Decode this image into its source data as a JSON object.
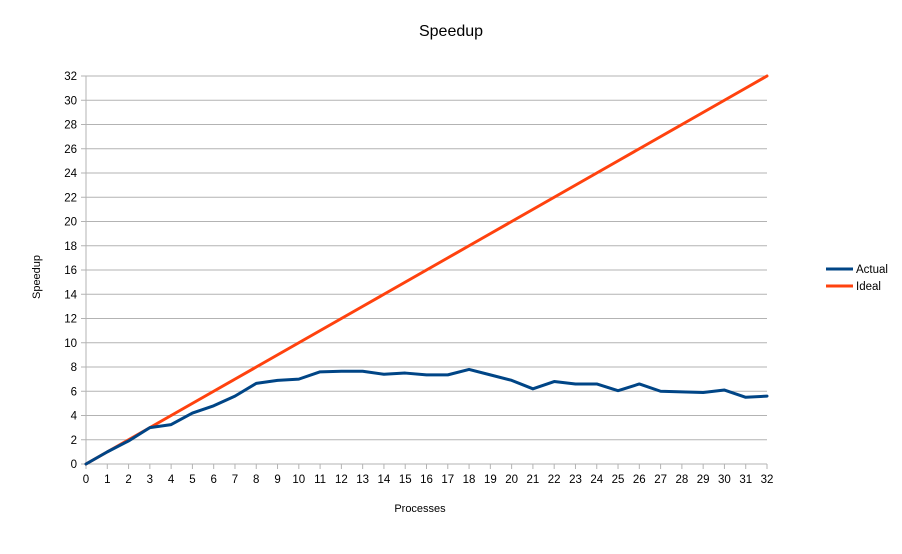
{
  "chart_data": {
    "type": "line",
    "title": "Speedup",
    "xlabel": "Processes",
    "ylabel": "Speedup",
    "xlim": [
      0,
      32
    ],
    "ylim": [
      0,
      32
    ],
    "x_ticks": [
      "0",
      "1",
      "2",
      "3",
      "4",
      "5",
      "6",
      "7",
      "8",
      "9",
      "10",
      "11",
      "12",
      "13",
      "14",
      "15",
      "16",
      "17",
      "18",
      "19",
      "20",
      "21",
      "22",
      "23",
      "24",
      "25",
      "26",
      "27",
      "28",
      "29",
      "30",
      "31",
      "32"
    ],
    "y_ticks": [
      "0",
      "2",
      "4",
      "6",
      "8",
      "10",
      "12",
      "14",
      "16",
      "18",
      "20",
      "22",
      "24",
      "26",
      "28",
      "30",
      "32"
    ],
    "grid": "horizontal",
    "legend_position": "right",
    "x": [
      0,
      1,
      2,
      3,
      4,
      5,
      6,
      7,
      8,
      9,
      10,
      11,
      12,
      13,
      14,
      15,
      16,
      17,
      18,
      19,
      20,
      21,
      22,
      23,
      24,
      25,
      26,
      27,
      28,
      29,
      30,
      31,
      32
    ],
    "series": [
      {
        "name": "Actual",
        "color": "#004586",
        "values": [
          0,
          1.0,
          1.9,
          3.0,
          3.25,
          4.2,
          4.8,
          5.6,
          6.65,
          6.9,
          7.0,
          7.6,
          7.65,
          7.65,
          7.4,
          7.5,
          7.35,
          7.35,
          7.8,
          7.35,
          6.9,
          6.2,
          6.8,
          6.6,
          6.6,
          6.05,
          6.6,
          6.0,
          5.95,
          5.9,
          6.1,
          5.5,
          5.6
        ]
      },
      {
        "name": "Ideal",
        "color": "#ff420e",
        "values": [
          0,
          1,
          2,
          3,
          4,
          5,
          6,
          7,
          8,
          9,
          10,
          11,
          12,
          13,
          14,
          15,
          16,
          17,
          18,
          19,
          20,
          21,
          22,
          23,
          24,
          25,
          26,
          27,
          28,
          29,
          30,
          31,
          32
        ]
      }
    ]
  }
}
